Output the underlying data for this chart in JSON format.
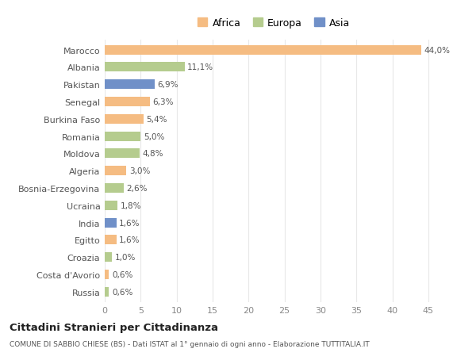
{
  "countries": [
    "Marocco",
    "Albania",
    "Pakistan",
    "Senegal",
    "Burkina Faso",
    "Romania",
    "Moldova",
    "Algeria",
    "Bosnia-Erzegovina",
    "Ucraina",
    "India",
    "Egitto",
    "Croazia",
    "Costa d'Avorio",
    "Russia"
  ],
  "values": [
    44.0,
    11.1,
    6.9,
    6.3,
    5.4,
    5.0,
    4.8,
    3.0,
    2.6,
    1.8,
    1.6,
    1.6,
    1.0,
    0.6,
    0.6
  ],
  "labels": [
    "44,0%",
    "11,1%",
    "6,9%",
    "6,3%",
    "5,4%",
    "5,0%",
    "4,8%",
    "3,0%",
    "2,6%",
    "1,8%",
    "1,6%",
    "1,6%",
    "1,0%",
    "0,6%",
    "0,6%"
  ],
  "continents": [
    "Africa",
    "Europa",
    "Asia",
    "Africa",
    "Africa",
    "Europa",
    "Europa",
    "Africa",
    "Europa",
    "Europa",
    "Asia",
    "Africa",
    "Europa",
    "Africa",
    "Europa"
  ],
  "colors": {
    "Africa": "#F5BC82",
    "Europa": "#B5CC8E",
    "Asia": "#7090C8"
  },
  "legend_labels": [
    "Africa",
    "Europa",
    "Asia"
  ],
  "title": "Cittadini Stranieri per Cittadinanza",
  "subtitle": "COMUNE DI SABBIO CHIESE (BS) - Dati ISTAT al 1° gennaio di ogni anno - Elaborazione TUTTITALIA.IT",
  "xlim": [
    0,
    47
  ],
  "xticks": [
    0,
    5,
    10,
    15,
    20,
    25,
    30,
    35,
    40,
    45
  ],
  "bg_color": "#ffffff",
  "grid_color": "#e8e8e8",
  "bar_height": 0.55
}
